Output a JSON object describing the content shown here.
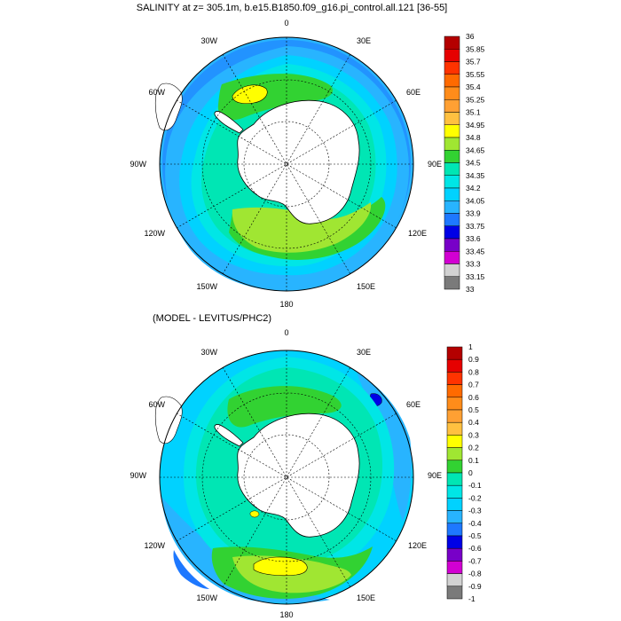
{
  "panels": [
    {
      "title": "SALINITY at z= 305.1m, b.e15.B1850.f09_g16.pi_control.all.121 [36-55]",
      "lon_labels": {
        "deg0": "0",
        "deg30e": "30E",
        "deg60e": "60E",
        "deg90e": "90E",
        "deg120e": "120E",
        "deg150e": "150E",
        "deg180": "180",
        "deg150w": "150W",
        "deg120w": "120W",
        "deg90w": "90W",
        "deg60w": "60W",
        "deg30w": "30W"
      },
      "colorbar": {
        "labels": [
          "36",
          "35.85",
          "35.7",
          "35.55",
          "35.4",
          "35.25",
          "35.1",
          "34.95",
          "34.8",
          "34.65",
          "34.5",
          "34.35",
          "34.2",
          "34.05",
          "33.9",
          "33.75",
          "33.6",
          "33.45",
          "33.3",
          "33.15",
          "33"
        ],
        "colors": [
          "#b40000",
          "#e60000",
          "#ff3300",
          "#ff6a00",
          "#ff8c1a",
          "#ffa033",
          "#ffc040",
          "#ffff00",
          "#a0e632",
          "#32d232",
          "#00e6b4",
          "#00e6e6",
          "#00d2ff",
          "#28b4ff",
          "#1e78ff",
          "#0000e6",
          "#7800c8",
          "#d200d2",
          "#d2d2d2",
          "#7a7a7a"
        ]
      }
    },
    {
      "title": "(MODEL - LEVITUS/PHC2)",
      "lon_labels": {
        "deg0": "0",
        "deg30e": "30E",
        "deg60e": "60E",
        "deg90e": "90E",
        "deg120e": "120E",
        "deg150e": "150E",
        "deg180": "180",
        "deg150w": "150W",
        "deg120w": "120W",
        "deg90w": "90W",
        "deg60w": "60W",
        "deg30w": "30W"
      },
      "colorbar": {
        "labels": [
          "1",
          "0.9",
          "0.8",
          "0.7",
          "0.6",
          "0.5",
          "0.4",
          "0.3",
          "0.2",
          "0.1",
          "0",
          "-0.1",
          "-0.2",
          "-0.3",
          "-0.4",
          "-0.5",
          "-0.6",
          "-0.7",
          "-0.8",
          "-0.9",
          "-1"
        ],
        "colors": [
          "#b40000",
          "#e60000",
          "#ff3300",
          "#ff6a00",
          "#ff8c1a",
          "#ffa033",
          "#ffc040",
          "#ffff00",
          "#a0e632",
          "#32d232",
          "#00e6b4",
          "#00e6e6",
          "#00d2ff",
          "#28b4ff",
          "#1e78ff",
          "#0000e6",
          "#7800c8",
          "#d200d2",
          "#d2d2d2",
          "#7a7a7a"
        ]
      }
    }
  ]
}
